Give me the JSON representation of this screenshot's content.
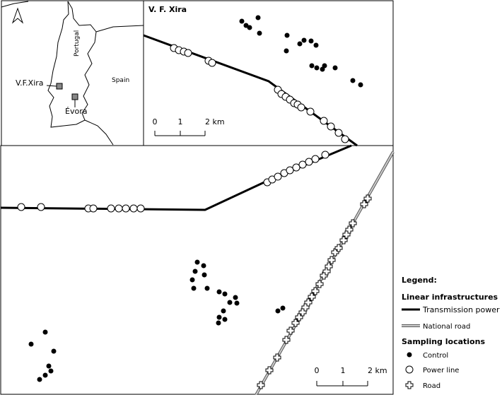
{
  "inset": {
    "north_label": "A",
    "site_labels": [
      "V.F.Xira",
      "Évora"
    ],
    "country_labels": [
      "Portugal",
      "Spain"
    ]
  },
  "panel": {
    "title": "V. F. Xira"
  },
  "scale_bar": {
    "labels": [
      "0",
      "1",
      "2 km"
    ]
  },
  "legend": {
    "title": "Legend:",
    "linear_heading": "Linear infrastructures",
    "linear_items": [
      "Transmission power line",
      "National road"
    ],
    "sampling_heading": "Sampling locations",
    "sampling_items": [
      "Control",
      "Power line",
      "Road"
    ]
  }
}
